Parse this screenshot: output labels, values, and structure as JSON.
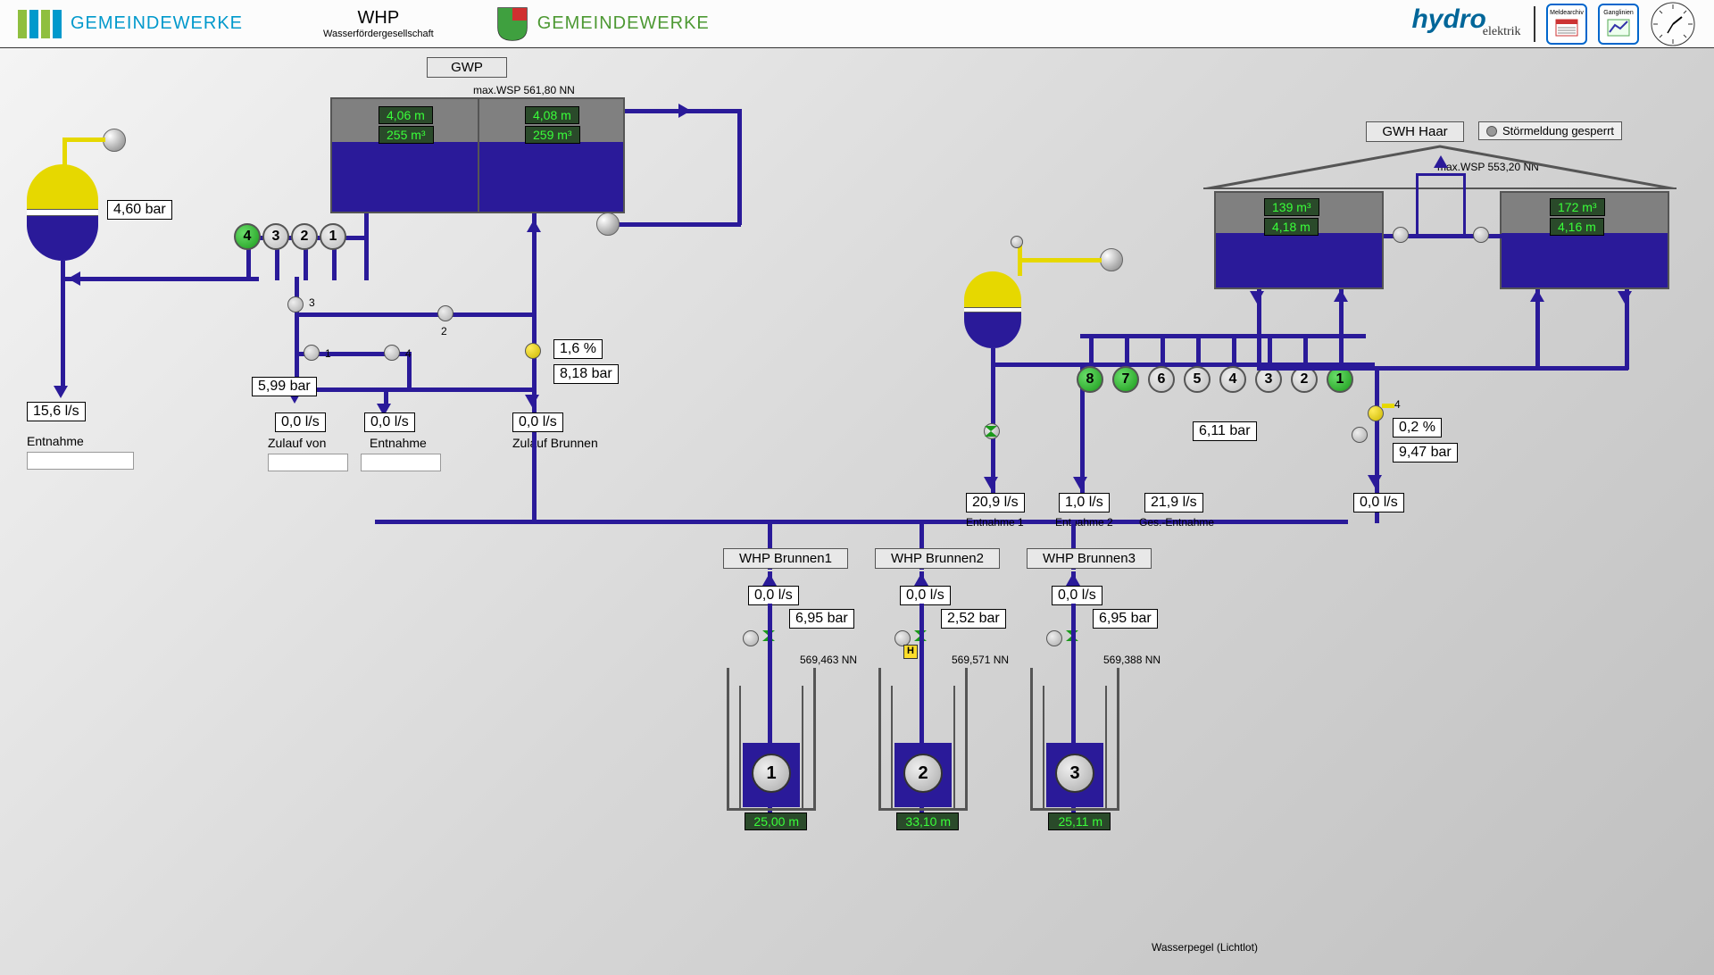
{
  "colors": {
    "pipe": "#2a1a99",
    "pipe_yellow": "#e6d800",
    "tank_grey": "#808080",
    "tank_fill": "#2a1a99",
    "pump_green": "#1a991a",
    "pump_grey": "#bbbbbb",
    "hdr_blue": "#0099cc",
    "hdr_green": "#4d9933"
  },
  "header": {
    "bars": [
      "#8fbf3f",
      "#0099cc",
      "#8fbf3f",
      "#0099cc"
    ],
    "gemeindewerke1": "GEMEINDEWERKE",
    "whp_title": "WHP",
    "whp_sub": "Wasserfördergesellschaft",
    "gemeindewerke2": "GEMEINDEWERKE",
    "hydro": "hydro",
    "hydro_sub": "elektrik",
    "btn1": "Meldearchiv",
    "btn2": "Ganglinien"
  },
  "left": {
    "vessel_pressure": "4,60 bar",
    "flow": "15,6 l/s",
    "label": "Entnahme"
  },
  "gwp": {
    "label": "GWP",
    "max_wsp": "max.WSP 561,80 NN",
    "tank": {
      "left_top": "4,06 m",
      "left_bot": "255 m³",
      "right_top": "4,08 m",
      "right_bot": "259 m³",
      "fill_pct": 62
    },
    "pumps": [
      "4",
      "3",
      "2",
      "1"
    ],
    "pump_active": [
      true,
      false,
      false,
      false
    ],
    "valve3": "3",
    "valve1": "1",
    "valve2": "2",
    "valve4": "4",
    "pressure_left": "5,99 bar",
    "flow_left": "0,0 l/s",
    "label_left": "Zulauf von",
    "flow_mid": "0,0 l/s",
    "label_mid": "Entnahme",
    "pct": "1,6 %",
    "pressure_right": "8,18 bar",
    "flow_right": "0,0 l/s",
    "label_right": "Zulauf Brunnen"
  },
  "center": {
    "vessel": {},
    "flow1": "20,9 l/s",
    "label1": "Entnahme 1",
    "flow2": "1,0 l/s",
    "label2": "Entnahme 2",
    "flow3": "21,9 l/s",
    "label3": "Ges.-Entnahme"
  },
  "gwh": {
    "label": "GWH Haar",
    "stoer": "Störmeldung gesperrt",
    "max_wsp": "max.WSP 553,20 NN",
    "tank_left_top": "139 m³",
    "tank_left_bot": "4,18 m",
    "tank_right_top": "172 m³",
    "tank_right_bot": "4,16 m",
    "tank_fill_pct": 58,
    "pumps": [
      "8",
      "7",
      "6",
      "5",
      "4",
      "3",
      "2",
      "1"
    ],
    "pump_active": [
      true,
      true,
      false,
      false,
      false,
      false,
      false,
      true
    ],
    "pressure": "6,11 bar",
    "pct": "0,2 %",
    "pressure2": "9,47 bar",
    "flow": "0,0 l/s"
  },
  "wells": [
    {
      "label": "WHP Brunnen1",
      "flow": "0,0 l/s",
      "pressure": "6,95 bar",
      "nn": "569,463 NN",
      "num": "1",
      "depth": "25,00 m",
      "h_badge": false
    },
    {
      "label": "WHP Brunnen2",
      "flow": "0,0 l/s",
      "pressure": "2,52 bar",
      "nn": "569,571 NN",
      "num": "2",
      "depth": "33,10 m",
      "h_badge": true
    },
    {
      "label": "WHP Brunnen3",
      "flow": "0,0 l/s",
      "pressure": "6,95 bar",
      "nn": "569,388 NN",
      "num": "3",
      "depth": "25,11 m",
      "h_badge": false
    }
  ],
  "wells_footer": "Wasserpegel (Lichtlot)"
}
